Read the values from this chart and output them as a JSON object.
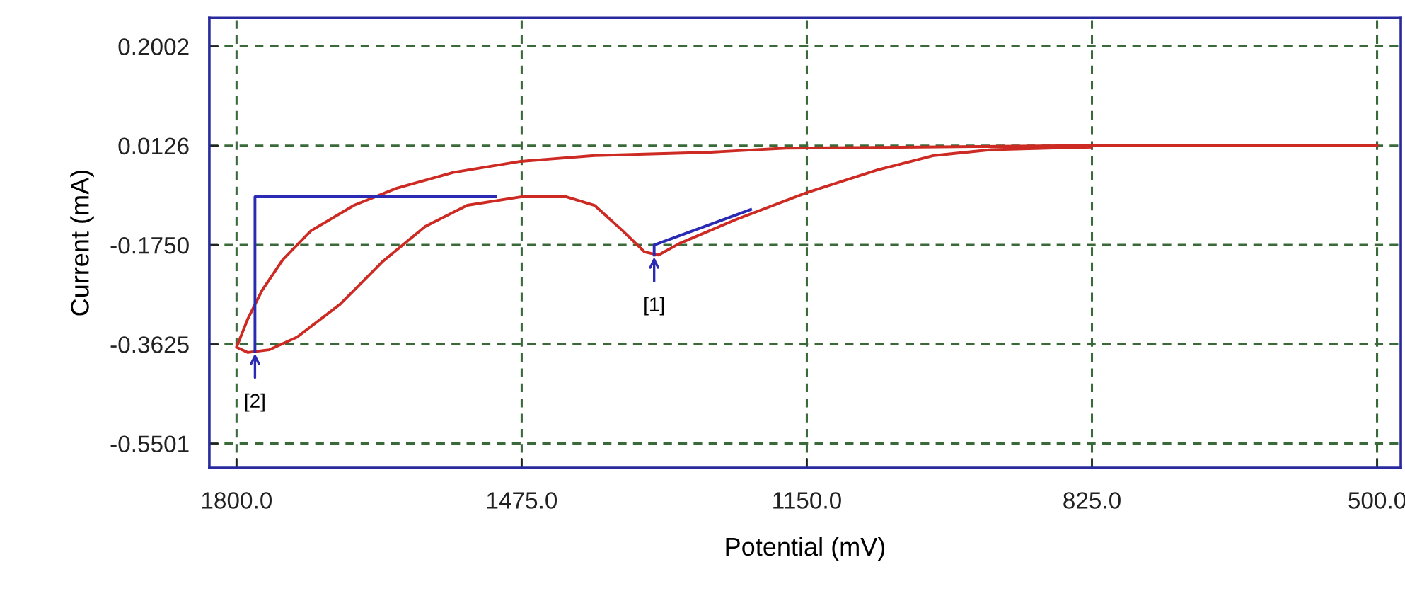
{
  "chart_data": {
    "type": "line",
    "xlabel": "Potential (mV)",
    "ylabel": "Current (mA)",
    "xlim": [
      1831,
      473
    ],
    "ylim": [
      -0.596,
      0.254
    ],
    "xticks": [
      {
        "value": 1800,
        "label": "1800.0"
      },
      {
        "value": 1475,
        "label": "1475.0"
      },
      {
        "value": 1150,
        "label": "1150.0"
      },
      {
        "value": 825,
        "label": "825.0"
      },
      {
        "value": 500,
        "label": "500.0"
      }
    ],
    "yticks": [
      {
        "value": 0.2002,
        "label": "0.2002"
      },
      {
        "value": 0.0126,
        "label": "0.0126"
      },
      {
        "value": -0.175,
        "label": "-0.1750"
      },
      {
        "value": -0.3625,
        "label": "-0.3625"
      },
      {
        "value": -0.5501,
        "label": "-0.5501"
      }
    ],
    "grid": true,
    "legend": false,
    "marker": "none",
    "line_style": "solid",
    "series": [
      {
        "color": "#cc2a22",
        "x": [
          500,
          826,
          1021,
          1174,
          1263,
          1392,
          1476,
          1553,
          1618,
          1666,
          1715,
          1747,
          1771,
          1787,
          1800,
          1787,
          1763,
          1731,
          1682,
          1634,
          1585,
          1537,
          1476,
          1424,
          1392,
          1360,
          1335,
          1319,
          1295,
          1231,
          1150,
          1069,
          1005,
          940,
          826
        ],
        "values": [
          0.013,
          0.013,
          0.01,
          0.008,
          0.0,
          -0.006,
          -0.017,
          -0.038,
          -0.068,
          -0.1,
          -0.148,
          -0.202,
          -0.261,
          -0.314,
          -0.368,
          -0.378,
          -0.373,
          -0.349,
          -0.287,
          -0.207,
          -0.14,
          -0.1,
          -0.084,
          -0.084,
          -0.1,
          -0.148,
          -0.188,
          -0.194,
          -0.172,
          -0.127,
          -0.076,
          -0.033,
          -0.006,
          0.005,
          0.01
        ]
      },
      {
        "color": "#2a2ab4",
        "x": [
          1779,
          1779,
          1505
        ],
        "values": [
          -0.376,
          -0.084,
          -0.084
        ]
      },
      {
        "color": "#2a2ab4",
        "x": [
          1324,
          1324,
          1214
        ],
        "values": [
          -0.194,
          -0.175,
          -0.108
        ]
      }
    ],
    "annotations": [
      {
        "text": "[2]",
        "x": 1779,
        "y": -0.376
      },
      {
        "text": "[1]",
        "x": 1324,
        "y": -0.194
      }
    ]
  }
}
